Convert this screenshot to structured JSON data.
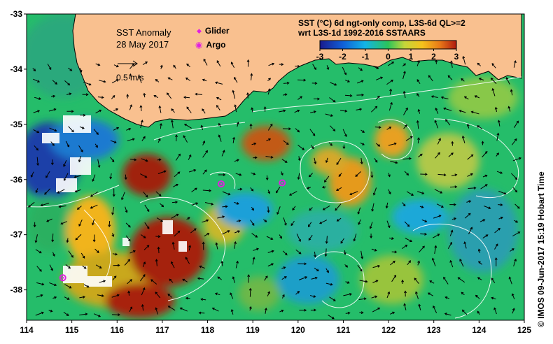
{
  "map": {
    "title": "SST Anomaly",
    "date": "28 May 2017",
    "scale_vector_label": "0.5 m/s",
    "colorbar_title_line1": "SST (°C) 6d ngt-only comp, L3S-6d QL>=2",
    "colorbar_title_line2": "wrt L3S-1d 1992-2016 SSTAARS",
    "colorbar_ticks": [
      "-3",
      "-2",
      "-1",
      "0",
      "1",
      "2",
      "3"
    ],
    "colorbar_range": [
      -3,
      3
    ],
    "x_ticks": [
      "114",
      "115",
      "116",
      "117",
      "118",
      "119",
      "120",
      "121",
      "122",
      "123",
      "124",
      "125"
    ],
    "y_ticks": [
      "-33",
      "-34",
      "-35",
      "-36",
      "-37",
      "-38"
    ],
    "lon_range": [
      114,
      125
    ],
    "lat_range": [
      -38.55,
      -33
    ],
    "legend": {
      "glider_label": "Glider",
      "argo_label": "Argo",
      "glider_icon": "diamond-marker-icon",
      "argo_icon": "circle-marker-icon"
    },
    "argo_floats": [
      {
        "lon": 118.3,
        "lat": -36.08
      },
      {
        "lon": 119.65,
        "lat": -36.06
      },
      {
        "lon": 114.8,
        "lat": -37.78
      }
    ],
    "credit": "©  IMOS 09-Jun-2017 15:19 Hobart Time",
    "colors": {
      "land": "#f9c08f",
      "sea_mid": "#22c06a",
      "marker": "#e020e0"
    }
  }
}
